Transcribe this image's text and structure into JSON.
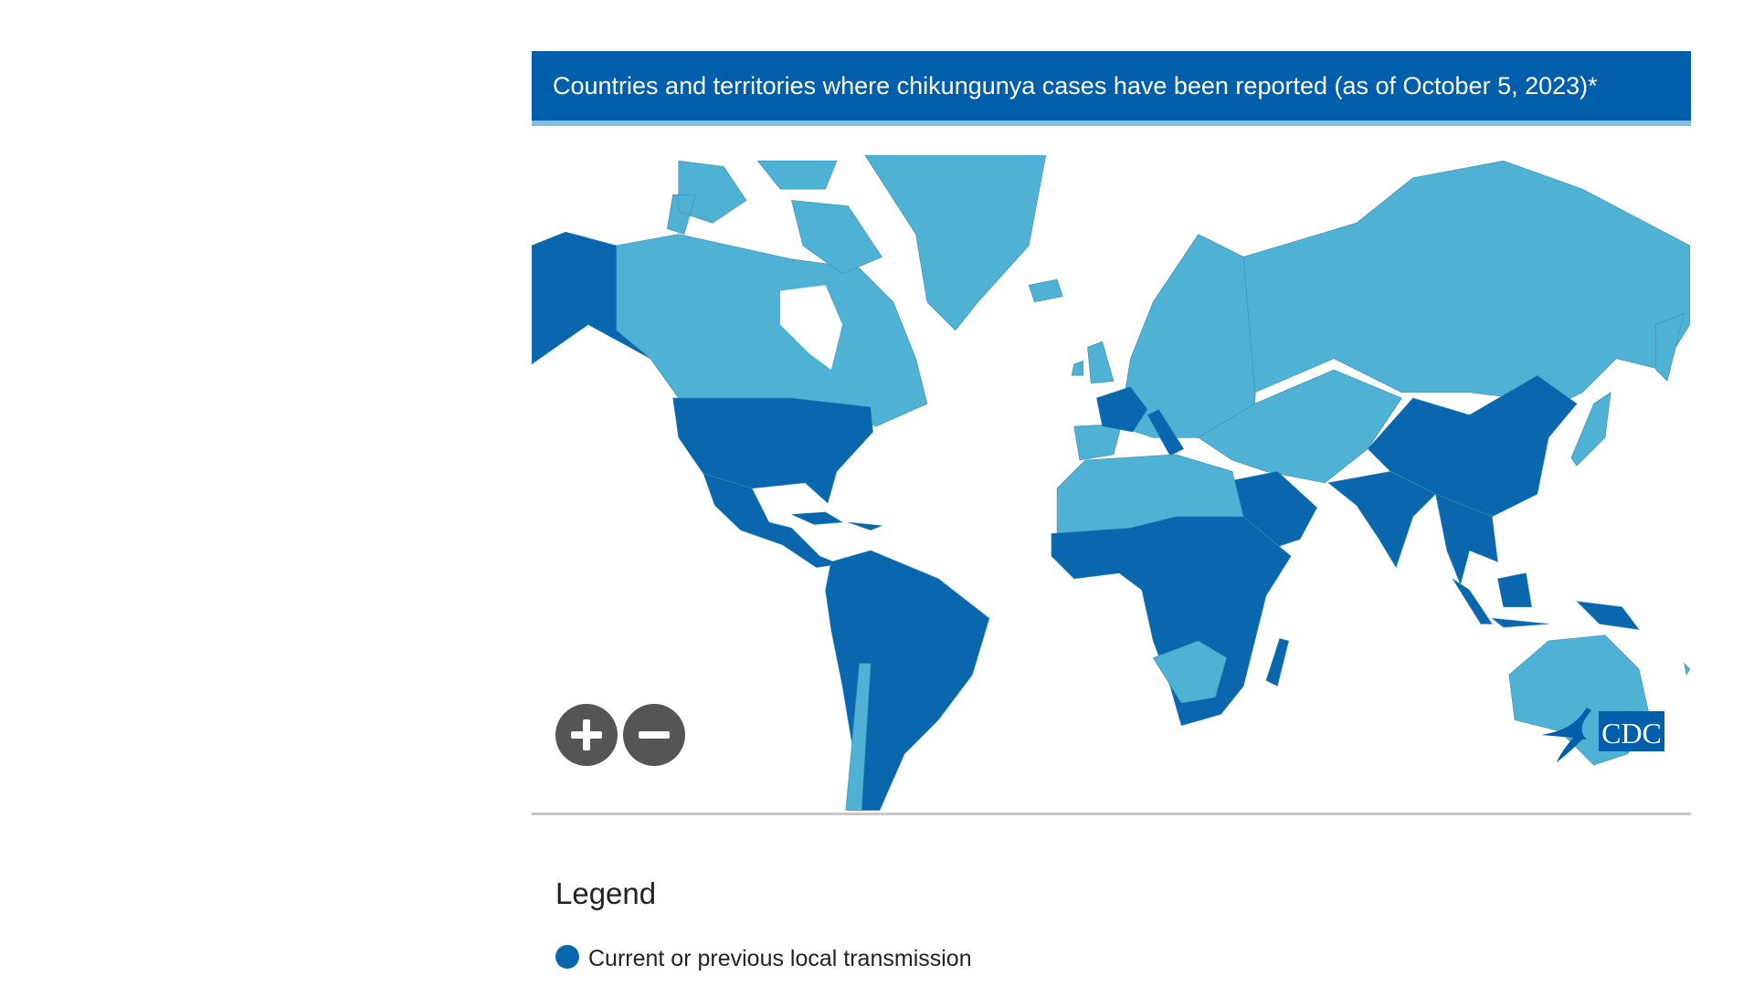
{
  "header": {
    "title": "Countries and territories where chikungunya cases have been reported (as of October 5, 2023)*"
  },
  "map": {
    "colors": {
      "local_transmission": "#0a67ad",
      "other": "#4fb1d4",
      "header": "#005eaa"
    },
    "controls": {
      "zoom_in_icon": "plus-icon",
      "zoom_out_icon": "minus-icon"
    },
    "logo": {
      "text": "CDC"
    }
  },
  "legend": {
    "title": "Legend",
    "items": [
      {
        "label": "Current or previous local transmission",
        "color": "#0a67ad"
      }
    ]
  }
}
